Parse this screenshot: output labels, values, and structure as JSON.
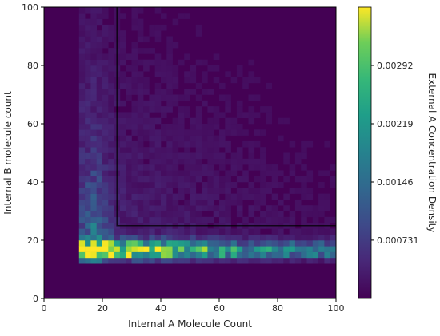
{
  "chart_data": {
    "type": "heatmap",
    "title": "",
    "xlabel": "Internal A Molecule Count",
    "ylabel": "Internal B molecule count",
    "xlim": [
      0,
      100
    ],
    "ylim": [
      0,
      100
    ],
    "x_ticks": [
      0,
      20,
      40,
      60,
      80,
      100
    ],
    "y_ticks": [
      0,
      20,
      40,
      60,
      80,
      100
    ],
    "colorbar": {
      "label": "External A Concentration Density",
      "ticks": [
        0.000731,
        0.00146,
        0.00219,
        0.00292
      ],
      "tick_labels": [
        "0.000731",
        "0.00146",
        "0.00219",
        "0.00292"
      ],
      "range": [
        0,
        0.00365
      ],
      "colormap": "viridis"
    },
    "bin_size": 2,
    "nonzero_region": {
      "x_min": 12,
      "y_min": 12
    },
    "density_description": "Density concentrated along band y≈14–22 for x from 12 to 100 (peak ~0.0033 near x≈15–35, y≈16), with lower density spreading upward along x≈12–25 and a sparse diffuse background elsewhere.",
    "threshold_lines": [
      {
        "label": "",
        "points": [
          [
            25,
            100
          ],
          [
            25,
            25
          ],
          [
            100,
            25
          ]
        ],
        "color": "#000000"
      }
    ],
    "grid": false
  }
}
